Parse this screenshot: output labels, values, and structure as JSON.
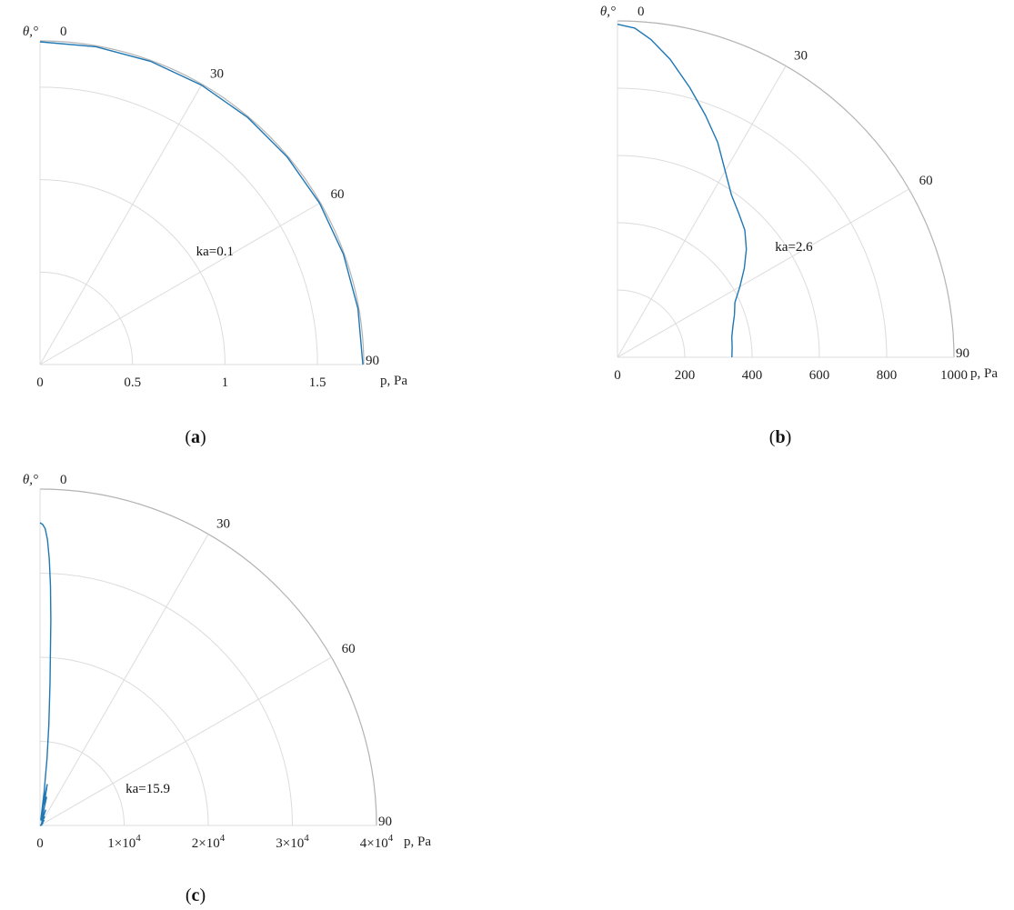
{
  "chart_data": [
    {
      "type": "polar",
      "panel_label": "a",
      "theta_label": "θ,°",
      "radial_label": "p, Pa",
      "angle_ticks": [
        "0",
        "30",
        "60",
        "90"
      ],
      "radial_ticks": [
        {
          "value": 0,
          "label": "0"
        },
        {
          "value": 0.5,
          "label": "0.5"
        },
        {
          "value": 1,
          "label": "1"
        },
        {
          "value": 1.5,
          "label": "1.5"
        }
      ],
      "rlim": [
        0,
        1.75
      ],
      "annotation": "ka=0.1",
      "annotation_theta": 55,
      "annotation_r": 1.03,
      "series": [
        {
          "theta": [
            0,
            10,
            20,
            30,
            40,
            50,
            60,
            70,
            80,
            90
          ],
          "r": [
            1.745,
            1.745,
            1.745,
            1.745,
            1.745,
            1.745,
            1.745,
            1.745,
            1.745,
            1.745
          ]
        }
      ]
    },
    {
      "type": "polar",
      "panel_label": "b",
      "theta_label": "θ,°",
      "radial_label": "p, Pa",
      "angle_ticks": [
        "0",
        "30",
        "60",
        "90"
      ],
      "radial_ticks": [
        {
          "value": 0,
          "label": "0"
        },
        {
          "value": 200,
          "label": "200"
        },
        {
          "value": 400,
          "label": "400"
        },
        {
          "value": 600,
          "label": "600"
        },
        {
          "value": 800,
          "label": "800"
        },
        {
          "value": 1000,
          "label": "1000"
        }
      ],
      "rlim": [
        0,
        1000
      ],
      "annotation": "ka=2.6",
      "annotation_theta": 56,
      "annotation_r": 565,
      "series": [
        {
          "theta": [
            0,
            3,
            6,
            10,
            15,
            20,
            25,
            30,
            35,
            40,
            45,
            50,
            55,
            60,
            65,
            70,
            75,
            80,
            85,
            90
          ],
          "r": [
            990,
            980,
            950,
            900,
            830,
            765,
            705,
            640,
            590,
            560,
            535,
            500,
            460,
            420,
            385,
            370,
            355,
            345,
            342,
            340
          ]
        }
      ]
    },
    {
      "type": "polar",
      "panel_label": "c",
      "theta_label": "θ,°",
      "radial_label": "p, Pa",
      "angle_ticks": [
        "0",
        "30",
        "60",
        "90"
      ],
      "radial_ticks": [
        {
          "value": 0,
          "label": "0"
        },
        {
          "value": 10000,
          "label": "1×10"
        },
        {
          "value": 20000,
          "label": "2×10"
        },
        {
          "value": 30000,
          "label": "3×10"
        },
        {
          "value": 40000,
          "label": "4×10"
        }
      ],
      "radial_tick_exponent": "4",
      "rlim": [
        0,
        40000
      ],
      "annotation": "ka=15.9",
      "annotation_theta": 69,
      "annotation_r": 10900,
      "series": [
        {
          "theta": [
            0,
            0.5,
            1,
            1.5,
            2,
            2.5,
            3,
            4,
            5,
            6,
            7,
            8,
            9,
            10,
            11,
            13,
            16,
            20,
            24,
            28,
            33,
            38,
            44,
            50,
            60,
            70,
            80,
            90
          ],
          "r": [
            36000,
            35800,
            35300,
            34000,
            31700,
            28500,
            24500,
            17000,
            12000,
            8000,
            4000,
            600,
            3500,
            5000,
            2500,
            3500,
            600,
            2000,
            500,
            1200,
            300,
            800,
            250,
            500,
            150,
            300,
            100,
            0
          ]
        }
      ]
    }
  ]
}
